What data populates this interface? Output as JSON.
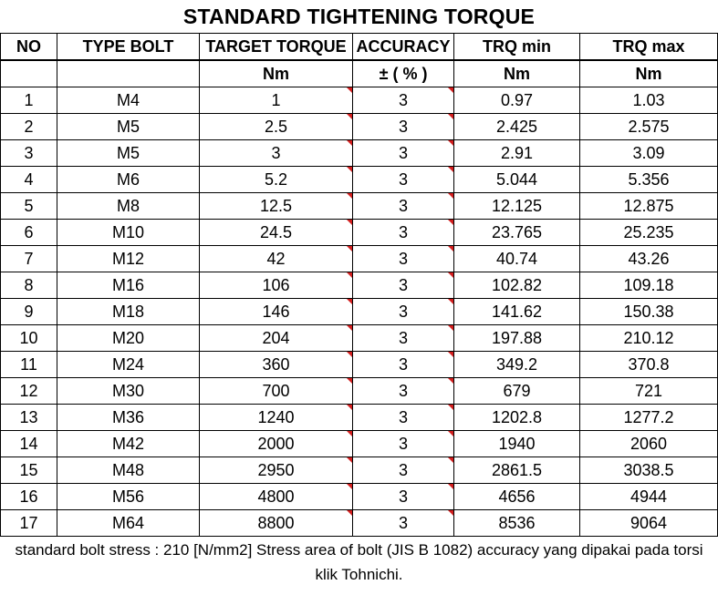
{
  "title": "STANDARD TIGHTENING TORQUE",
  "colors": {
    "marker": "#d31f1f",
    "border": "#000000"
  },
  "headers": [
    "NO",
    "TYPE BOLT",
    "TARGET TORQUE",
    "ACCURACY",
    "TRQ min",
    "TRQ max"
  ],
  "units": [
    "",
    "",
    "Nm",
    "± ( % )",
    "Nm",
    "Nm"
  ],
  "rows": [
    [
      "1",
      "M4",
      "1",
      "3",
      "0.97",
      "1.03"
    ],
    [
      "2",
      "M5",
      "2.5",
      "3",
      "2.425",
      "2.575"
    ],
    [
      "3",
      "M5",
      "3",
      "3",
      "2.91",
      "3.09"
    ],
    [
      "4",
      "M6",
      "5.2",
      "3",
      "5.044",
      "5.356"
    ],
    [
      "5",
      "M8",
      "12.5",
      "3",
      "12.125",
      "12.875"
    ],
    [
      "6",
      "M10",
      "24.5",
      "3",
      "23.765",
      "25.235"
    ],
    [
      "7",
      "M12",
      "42",
      "3",
      "40.74",
      "43.26"
    ],
    [
      "8",
      "M16",
      "106",
      "3",
      "102.82",
      "109.18"
    ],
    [
      "9",
      "M18",
      "146",
      "3",
      "141.62",
      "150.38"
    ],
    [
      "10",
      "M20",
      "204",
      "3",
      "197.88",
      "210.12"
    ],
    [
      "11",
      "M24",
      "360",
      "3",
      "349.2",
      "370.8"
    ],
    [
      "12",
      "M30",
      "700",
      "3",
      "679",
      "721"
    ],
    [
      "13",
      "M36",
      "1240",
      "3",
      "1202.8",
      "1277.2"
    ],
    [
      "14",
      "M42",
      "2000",
      "3",
      "1940",
      "2060"
    ],
    [
      "15",
      "M48",
      "2950",
      "3",
      "2861.5",
      "3038.5"
    ],
    [
      "16",
      "M56",
      "4800",
      "3",
      "4656",
      "4944"
    ],
    [
      "17",
      "M64",
      "8800",
      "3",
      "8536",
      "9064"
    ]
  ],
  "footnote": "standard bolt stress : 210 [N/mm2]   Stress area of bolt (JIS B 1082) accuracy yang dipakai pada torsi klik Tohnichi."
}
